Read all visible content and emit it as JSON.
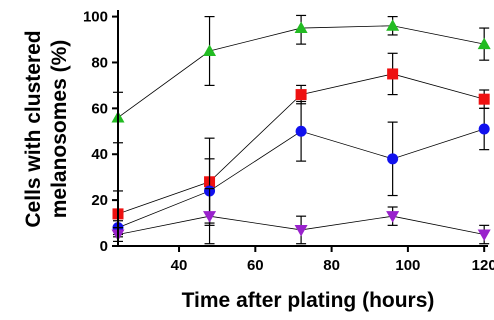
{
  "chart_data": {
    "type": "scatter",
    "xlabel": "Time after plating (hours)",
    "ylabel": [
      "Cells with clustered",
      "melanosomes (%)"
    ],
    "xlim": [
      24,
      121
    ],
    "ylim": [
      0,
      102
    ],
    "x_ticks": [
      40,
      60,
      80,
      100,
      120
    ],
    "y_ticks": [
      0,
      20,
      40,
      60,
      80,
      100
    ],
    "grid": false,
    "legend": "none",
    "series": [
      {
        "marker": "triangle-up",
        "color": "#22bb22",
        "points": [
          {
            "x": 24,
            "y": 56,
            "err": 11
          },
          {
            "x": 48,
            "y": 85,
            "err": 15
          },
          {
            "x": 72,
            "y": 95,
            "err": 7
          },
          {
            "x": 96,
            "y": 96,
            "err": 4
          },
          {
            "x": 120,
            "y": 88,
            "err": 7
          }
        ]
      },
      {
        "marker": "square",
        "color": "#ee1111",
        "points": [
          {
            "x": 24,
            "y": 14,
            "err": 10
          },
          {
            "x": 48,
            "y": 28,
            "err": 19
          },
          {
            "x": 72,
            "y": 66,
            "err": 4
          },
          {
            "x": 96,
            "y": 75,
            "err": 9
          },
          {
            "x": 120,
            "y": 64,
            "err": 4
          }
        ]
      },
      {
        "marker": "circle",
        "color": "#1111ee",
        "points": [
          {
            "x": 24,
            "y": 8,
            "err": 3
          },
          {
            "x": 48,
            "y": 24,
            "err": 14
          },
          {
            "x": 72,
            "y": 50,
            "err": 13
          },
          {
            "x": 96,
            "y": 38,
            "err": 16
          },
          {
            "x": 120,
            "y": 51,
            "err": 9
          }
        ]
      },
      {
        "marker": "triangle-down",
        "color": "#9922cc",
        "points": [
          {
            "x": 24,
            "y": 5,
            "err": 3
          },
          {
            "x": 48,
            "y": 13,
            "err": 12
          },
          {
            "x": 72,
            "y": 7,
            "err": 6
          },
          {
            "x": 96,
            "y": 13,
            "err": 4
          },
          {
            "x": 120,
            "y": 5,
            "err": 4
          }
        ]
      }
    ]
  }
}
